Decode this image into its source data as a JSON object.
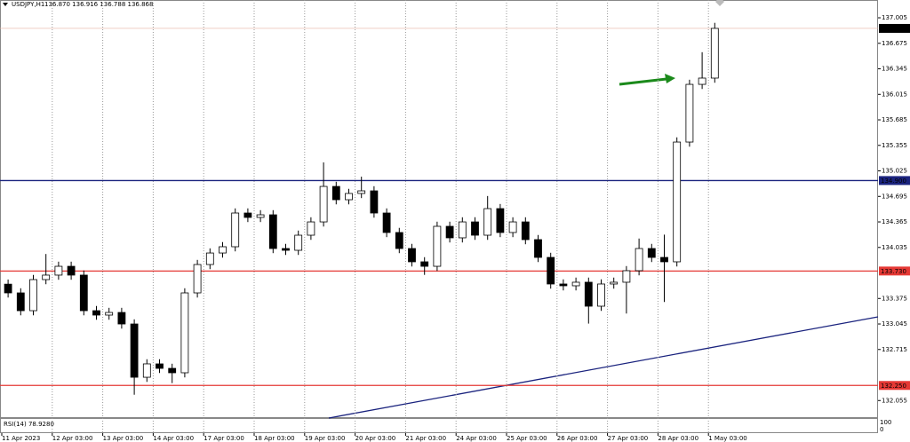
{
  "chart_data": {
    "type": "candlestick",
    "title": "USDJPY,H1",
    "quote": "136.870 136.916 136.788 136.868",
    "indicator": "RSI(14) 78.9280",
    "indicator_ticks": [
      100,
      0
    ],
    "ylim": [
      131.84,
      137.235
    ],
    "yticks": [
      137.005,
      136.675,
      136.345,
      136.015,
      135.685,
      135.355,
      135.025,
      134.695,
      134.365,
      134.035,
      133.375,
      133.045,
      132.715,
      132.055
    ],
    "dates": [
      "11 Apr 2023",
      "12 Apr 03:00",
      "13 Apr 03:00",
      "14 Apr 03:00",
      "17 Apr 03:00",
      "18 Apr 03:00",
      "19 Apr 03:00",
      "20 Apr 03:00",
      "21 Apr 03:00",
      "24 Apr 03:00",
      "25 Apr 03:00",
      "26 Apr 03:00",
      "27 Apr 03:00",
      "28 Apr 03:00",
      "1 May 03:00"
    ],
    "levels": [
      {
        "value": 136.868,
        "label": "136.868",
        "color": "#000000"
      },
      {
        "value": 134.9,
        "label": "134.900",
        "color": "#1a237e"
      },
      {
        "value": 133.73,
        "label": "133.730",
        "color": "#e53935"
      },
      {
        "value": 132.25,
        "label": "132.250",
        "color": "#e53935"
      }
    ],
    "up_color": "#ffffff",
    "down_color": "#000000",
    "ohlc": [
      [
        133.56,
        133.62,
        133.387,
        133.447
      ],
      [
        133.447,
        133.507,
        133.157,
        133.217
      ],
      [
        133.217,
        133.679,
        133.157,
        133.619
      ],
      [
        133.619,
        133.95,
        133.559,
        133.677
      ],
      [
        133.677,
        133.851,
        133.617,
        133.791
      ],
      [
        133.791,
        133.851,
        133.617,
        133.677
      ],
      [
        133.677,
        133.737,
        133.157,
        133.217
      ],
      [
        133.217,
        133.277,
        133.1,
        133.16
      ],
      [
        133.16,
        133.254,
        133.1,
        133.194
      ],
      [
        133.194,
        133.254,
        132.985,
        133.045
      ],
      [
        133.045,
        133.105,
        132.13,
        132.356
      ],
      [
        132.356,
        132.589,
        132.296,
        132.529
      ],
      [
        132.529,
        132.589,
        132.411,
        132.471
      ],
      [
        132.471,
        132.531,
        132.28,
        132.414
      ],
      [
        132.414,
        133.507,
        132.354,
        133.447
      ],
      [
        133.447,
        133.874,
        133.387,
        133.814
      ],
      [
        133.814,
        134.023,
        133.754,
        133.963
      ],
      [
        133.963,
        134.104,
        133.903,
        134.044
      ],
      [
        134.044,
        134.54,
        133.984,
        134.48
      ],
      [
        134.48,
        134.54,
        134.363,
        134.423
      ],
      [
        134.423,
        134.517,
        134.363,
        134.457
      ],
      [
        134.457,
        134.517,
        133.961,
        134.021
      ],
      [
        134.021,
        134.081,
        133.938,
        133.998
      ],
      [
        133.998,
        134.253,
        133.938,
        134.193
      ],
      [
        134.193,
        134.425,
        134.133,
        134.365
      ],
      [
        134.365,
        135.135,
        134.305,
        134.824
      ],
      [
        134.824,
        134.884,
        134.592,
        134.652
      ],
      [
        134.652,
        134.793,
        134.592,
        134.733
      ],
      [
        134.733,
        134.95,
        134.673,
        134.767
      ],
      [
        134.767,
        134.827,
        134.42,
        134.48
      ],
      [
        134.48,
        134.54,
        134.168,
        134.228
      ],
      [
        134.228,
        134.288,
        133.961,
        134.021
      ],
      [
        134.021,
        134.081,
        133.789,
        133.849
      ],
      [
        133.849,
        133.909,
        133.68,
        133.791
      ],
      [
        133.791,
        134.368,
        133.731,
        134.308
      ],
      [
        134.308,
        134.368,
        134.099,
        134.159
      ],
      [
        134.159,
        134.425,
        134.099,
        134.365
      ],
      [
        134.365,
        134.425,
        134.133,
        134.193
      ],
      [
        134.193,
        134.7,
        134.133,
        134.537
      ],
      [
        134.537,
        134.597,
        134.168,
        134.228
      ],
      [
        134.228,
        134.425,
        134.168,
        134.365
      ],
      [
        134.365,
        134.425,
        134.076,
        134.136
      ],
      [
        134.136,
        134.196,
        133.846,
        133.906
      ],
      [
        133.906,
        133.966,
        133.502,
        133.562
      ],
      [
        133.562,
        133.622,
        133.479,
        133.539
      ],
      [
        133.539,
        133.645,
        133.479,
        133.585
      ],
      [
        133.585,
        133.645,
        133.05,
        133.275
      ],
      [
        133.275,
        133.622,
        133.215,
        133.562
      ],
      [
        133.562,
        133.645,
        133.502,
        133.585
      ],
      [
        133.585,
        133.794,
        133.18,
        133.734
      ],
      [
        133.734,
        134.15,
        133.674,
        134.021
      ],
      [
        134.021,
        134.081,
        133.846,
        133.906
      ],
      [
        133.906,
        134.2,
        133.33,
        133.849
      ],
      [
        133.849,
        135.458,
        133.789,
        135.398
      ],
      [
        135.398,
        136.204,
        135.338,
        136.144
      ],
      [
        136.144,
        136.56,
        136.084,
        136.225
      ],
      [
        136.225,
        136.94,
        136.165,
        136.868
      ]
    ]
  }
}
